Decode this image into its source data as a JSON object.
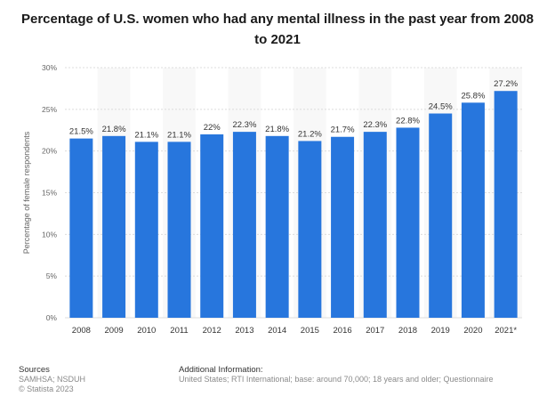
{
  "title": "Percentage of U.S. women who had any mental illness in the past year from 2008 to 2021",
  "footer": {
    "sources_heading": "Sources",
    "sources_line1": "SAMHSA; NSDUH",
    "sources_line2": "© Statista 2023",
    "info_heading": "Additional Information:",
    "info_text": "United States; RTI International; base: around 70,000; 18 years and older; Questionnaire"
  },
  "colors": {
    "bar": "#2776DD",
    "grid": "#dcdcdc",
    "band": "#f8f8f8",
    "label": "#333333",
    "tick": "#666666"
  },
  "chart_data": {
    "type": "bar",
    "categories": [
      "2008",
      "2009",
      "2010",
      "2011",
      "2012",
      "2013",
      "2014",
      "2015",
      "2016",
      "2017",
      "2018",
      "2019",
      "2020",
      "2021*"
    ],
    "values": [
      21.5,
      21.8,
      21.1,
      21.1,
      22,
      22.3,
      21.8,
      21.2,
      21.7,
      22.3,
      22.8,
      24.5,
      25.8,
      27.2
    ],
    "value_labels": [
      "21.5%",
      "21.8%",
      "21.1%",
      "21.1%",
      "22%",
      "22.3%",
      "21.8%",
      "21.2%",
      "21.7%",
      "22.3%",
      "22.8%",
      "24.5%",
      "25.8%",
      "27.2%"
    ],
    "yticks": [
      0,
      5,
      10,
      15,
      20,
      25,
      30
    ],
    "ytick_labels": [
      "0%",
      "5%",
      "10%",
      "15%",
      "20%",
      "25%",
      "30%"
    ],
    "ylim": [
      0,
      30
    ],
    "xlabel": "",
    "ylabel": "Percentage of female respondents",
    "grid": true
  }
}
